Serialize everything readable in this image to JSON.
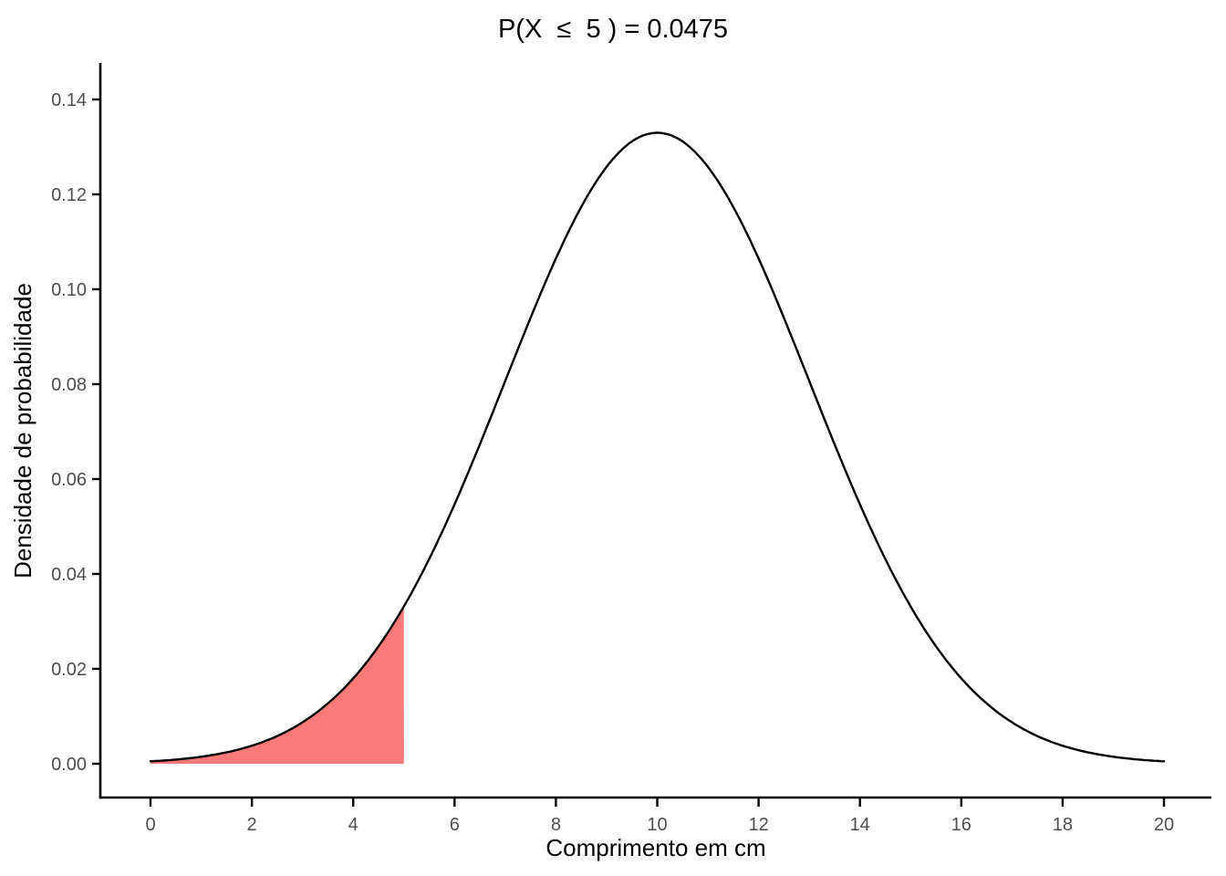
{
  "chart_data": {
    "type": "area",
    "title": "P(X  ≤  5 ) = 0.0475",
    "xlabel": "Comprimento em cm",
    "ylabel": "Densidade de probabilidade",
    "x_ticks": {
      "values": [
        0,
        2,
        4,
        6,
        8,
        10,
        12,
        14,
        16,
        18,
        20
      ],
      "labels": [
        "0",
        "2",
        "4",
        "6",
        "8",
        "10",
        "12",
        "14",
        "16",
        "18",
        "20"
      ]
    },
    "y_ticks": {
      "values": [
        0.0,
        0.02,
        0.04,
        0.06,
        0.08,
        0.1,
        0.12,
        0.14
      ],
      "labels": [
        "0.00",
        "0.02",
        "0.04",
        "0.06",
        "0.08",
        "0.10",
        "0.12",
        "0.14"
      ]
    },
    "xlim": [
      0,
      20
    ],
    "ylim": [
      0,
      0.1477
    ],
    "grid": false,
    "legend": false,
    "distribution": {
      "family": "normal",
      "mean": 10,
      "sd": 3
    },
    "curve": {
      "x_start": 0,
      "x_end": 20,
      "color": "#000000",
      "peak": {
        "x": 10,
        "density": 0.13298
      },
      "points": [
        {
          "x": 0,
          "density": 0.00051
        },
        {
          "x": 1,
          "density": 0.00148
        },
        {
          "x": 2,
          "density": 0.0038
        },
        {
          "x": 3,
          "density": 0.00874
        },
        {
          "x": 4,
          "density": 0.018
        },
        {
          "x": 5,
          "density": 0.03316
        },
        {
          "x": 6,
          "density": 0.05467
        },
        {
          "x": 7,
          "density": 0.08066
        },
        {
          "x": 8,
          "density": 0.10648
        },
        {
          "x": 9,
          "density": 0.12579
        },
        {
          "x": 10,
          "density": 0.13298
        },
        {
          "x": 11,
          "density": 0.12579
        },
        {
          "x": 12,
          "density": 0.10648
        },
        {
          "x": 13,
          "density": 0.08066
        },
        {
          "x": 14,
          "density": 0.05467
        },
        {
          "x": 15,
          "density": 0.03316
        },
        {
          "x": 16,
          "density": 0.018
        },
        {
          "x": 17,
          "density": 0.00874
        },
        {
          "x": 18,
          "density": 0.0038
        },
        {
          "x": 19,
          "density": 0.00148
        },
        {
          "x": 20,
          "density": 0.00051
        }
      ]
    },
    "shaded_region": {
      "x_from": 0,
      "x_to": 5,
      "probability": 0.0475,
      "density_at_boundary": 0.03316,
      "fill_color": "#FA7A7A"
    },
    "colors": {
      "curve": "#000000",
      "axis": "#000000",
      "tick_label": "#4D4D4D",
      "text": "#000000",
      "background": "#FFFFFF",
      "shaded_fill": "#FA7A7A"
    }
  }
}
